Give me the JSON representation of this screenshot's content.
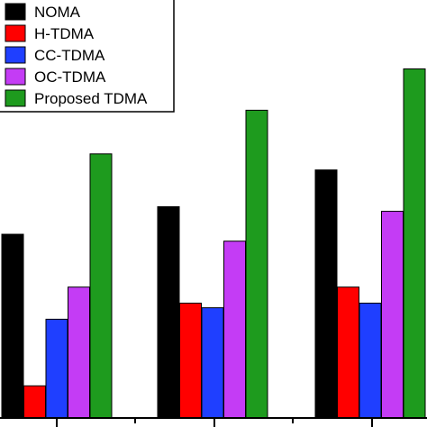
{
  "chart_data": {
    "type": "bar",
    "categories": [
      "",
      "",
      ""
    ],
    "series": [
      {
        "name": "NOMA",
        "color": "#000000",
        "values": [
          40,
          46,
          54
        ]
      },
      {
        "name": "H-TDMA",
        "color": "#ff0000",
        "values": [
          7,
          25,
          28.5
        ]
      },
      {
        "name": "CC-TDMA",
        "color": "#1f3fff",
        "values": [
          21.5,
          24,
          25
        ]
      },
      {
        "name": "OC-TDMA",
        "color": "#c43cf5",
        "values": [
          28.5,
          38.5,
          45
        ]
      },
      {
        "name": "Proposed TDMA",
        "color": "#1e9b1e",
        "values": [
          57.5,
          67,
          76
        ]
      }
    ],
    "ylim": [
      0,
      91
    ],
    "legend_position": "top-left",
    "title": "",
    "xlabel": "",
    "ylabel": ""
  }
}
